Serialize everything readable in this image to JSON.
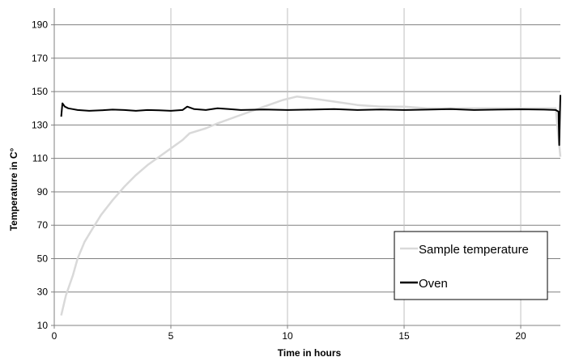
{
  "chart_data": {
    "type": "line",
    "title": "",
    "xlabel": "Time in hours",
    "ylabel": "Temperature in C°",
    "xlim": [
      0,
      21.7
    ],
    "ylim": [
      10,
      200
    ],
    "x_ticks": [
      0,
      5,
      10,
      15,
      20
    ],
    "y_ticks": [
      10,
      30,
      50,
      70,
      90,
      110,
      130,
      150,
      170,
      190
    ],
    "grid": true,
    "legend_position": "bottom-right",
    "series": [
      {
        "name": "Sample temperature",
        "color": "#d9d9d9",
        "x": [
          0.3,
          0.5,
          0.8,
          1.0,
          1.3,
          1.6,
          2.0,
          2.5,
          3.0,
          3.5,
          4.0,
          4.5,
          5.0,
          5.5,
          5.8,
          6.5,
          7.0,
          8.0,
          9.0,
          9.8,
          10.4,
          11.0,
          12.0,
          13.0,
          14.0,
          15.0,
          16.0,
          17.0,
          18.0,
          19.0,
          20.0,
          21.0,
          21.5,
          21.7
        ],
        "y": [
          16,
          28,
          40,
          50,
          60,
          67,
          76,
          85,
          93,
          100,
          106,
          111,
          116,
          121,
          125,
          128,
          131,
          136,
          141,
          145,
          147,
          146,
          144,
          142,
          141,
          141,
          140,
          140,
          140,
          140,
          140,
          140,
          140,
          111
        ]
      },
      {
        "name": "Oven",
        "color": "#000000",
        "x": [
          0.3,
          0.35,
          0.45,
          0.6,
          0.8,
          1.0,
          1.5,
          2.0,
          2.5,
          3.0,
          3.5,
          4.0,
          4.5,
          5.0,
          5.5,
          5.7,
          6.0,
          6.5,
          7.0,
          7.5,
          8.0,
          9.0,
          10.0,
          11.0,
          12.0,
          13.0,
          14.0,
          15.0,
          16.0,
          17.0,
          18.0,
          19.0,
          20.0,
          21.0,
          21.5,
          21.62,
          21.65,
          21.7
        ],
        "y": [
          135,
          143,
          141,
          140,
          139.5,
          139,
          138.5,
          138.8,
          139.2,
          139,
          138.5,
          139,
          138.8,
          138.5,
          139,
          141,
          139.5,
          139,
          140,
          139.5,
          139,
          139.3,
          139,
          139.2,
          139.5,
          139,
          139.3,
          139,
          139.2,
          139.5,
          139,
          139.2,
          139.4,
          139.2,
          139,
          138,
          118,
          148
        ]
      }
    ]
  }
}
